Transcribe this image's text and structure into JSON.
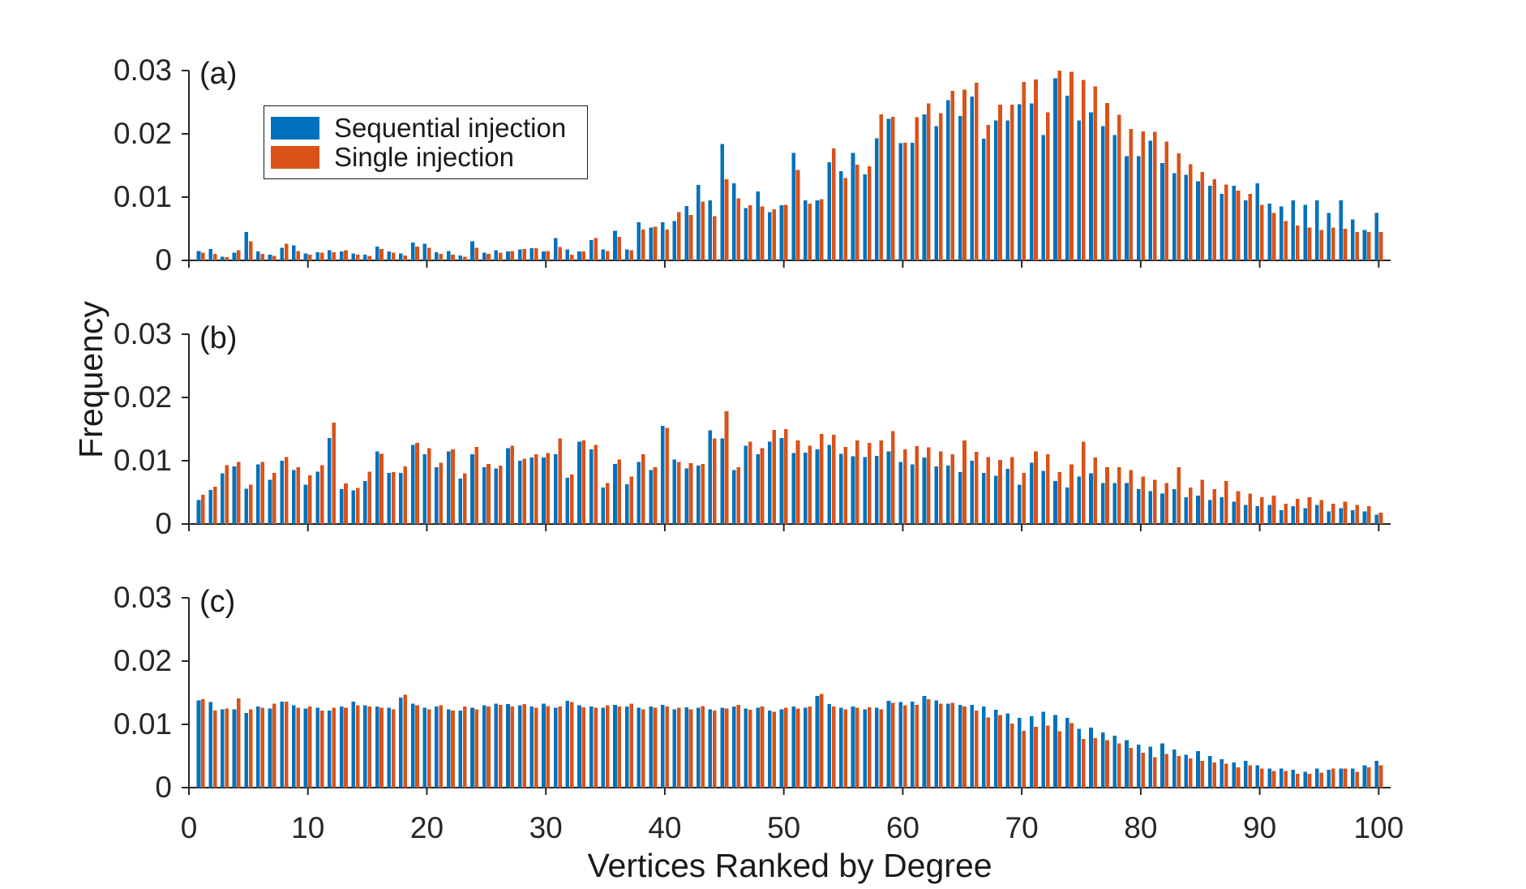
{
  "figure": {
    "background": "#FFFFFF",
    "xlabel": "Vertices Ranked by Degree",
    "ylabel": "Frequency",
    "xtick_labels": [
      "0",
      "10",
      "20",
      "30",
      "40",
      "50",
      "60",
      "70",
      "80",
      "90",
      "100"
    ],
    "ytick_labels": [
      "0",
      "0.01",
      "0.02",
      "0.03"
    ],
    "axis_color": "#262626"
  },
  "legend": {
    "items": [
      {
        "label": "Sequential injection",
        "color": "#0072BD"
      },
      {
        "label": "Single injection",
        "color": "#D95319"
      }
    ]
  },
  "chart_data": [
    {
      "type": "bar",
      "id": "a",
      "tag": "(a)",
      "x_start": 1,
      "xlim": [
        0,
        101
      ],
      "ylim": [
        0,
        0.03
      ],
      "ylabel": "Frequency",
      "series": [
        {
          "name": "Sequential injection",
          "color": "#0072BD",
          "values": [
            0.0015,
            0.0018,
            0.0006,
            0.0012,
            0.0045,
            0.0014,
            0.0009,
            0.002,
            0.0024,
            0.0011,
            0.0013,
            0.0016,
            0.0014,
            0.0011,
            0.0009,
            0.0022,
            0.0014,
            0.0011,
            0.0028,
            0.0026,
            0.0013,
            0.0015,
            0.0008,
            0.003,
            0.0012,
            0.0016,
            0.0014,
            0.0017,
            0.0019,
            0.0014,
            0.0035,
            0.0017,
            0.0014,
            0.0032,
            0.0017,
            0.0047,
            0.0017,
            0.006,
            0.0052,
            0.006,
            0.0062,
            0.0086,
            0.0119,
            0.0095,
            0.0184,
            0.0122,
            0.0083,
            0.0109,
            0.0076,
            0.0087,
            0.017,
            0.0095,
            0.0095,
            0.0155,
            0.0141,
            0.017,
            0.0136,
            0.0193,
            0.0224,
            0.0185,
            0.0186,
            0.0231,
            0.0212,
            0.0253,
            0.0228,
            0.0259,
            0.0192,
            0.0221,
            0.0221,
            0.0247,
            0.0248,
            0.0198,
            0.0288,
            0.026,
            0.0221,
            0.0234,
            0.0212,
            0.0198,
            0.0165,
            0.0165,
            0.0189,
            0.0154,
            0.0138,
            0.0135,
            0.0125,
            0.0118,
            0.0105,
            0.0118,
            0.0095,
            0.0122,
            0.009,
            0.0085,
            0.0095,
            0.0088,
            0.0095,
            0.0075,
            0.0095,
            0.0065,
            0.0048,
            0.0075
          ]
        },
        {
          "name": "Single injection",
          "color": "#D95319",
          "values": [
            0.0012,
            0.001,
            0.0005,
            0.0016,
            0.003,
            0.001,
            0.0007,
            0.0026,
            0.0015,
            0.0009,
            0.0012,
            0.0013,
            0.0016,
            0.0009,
            0.0007,
            0.0018,
            0.0012,
            0.0008,
            0.0022,
            0.002,
            0.001,
            0.0009,
            0.0006,
            0.002,
            0.001,
            0.0012,
            0.0015,
            0.0018,
            0.0019,
            0.0015,
            0.0021,
            0.0009,
            0.0014,
            0.0035,
            0.0015,
            0.0037,
            0.0016,
            0.0049,
            0.0053,
            0.0049,
            0.0076,
            0.0072,
            0.0093,
            0.007,
            0.0128,
            0.0098,
            0.0087,
            0.0085,
            0.0081,
            0.0088,
            0.0143,
            0.009,
            0.0097,
            0.0177,
            0.013,
            0.0151,
            0.0149,
            0.0231,
            0.0227,
            0.0186,
            0.0226,
            0.0248,
            0.0233,
            0.0268,
            0.027,
            0.0281,
            0.0214,
            0.0246,
            0.0246,
            0.0282,
            0.0286,
            0.0234,
            0.03,
            0.0298,
            0.0285,
            0.0275,
            0.0249,
            0.023,
            0.0208,
            0.0204,
            0.0203,
            0.0188,
            0.0169,
            0.0152,
            0.014,
            0.0128,
            0.012,
            0.011,
            0.0105,
            0.0088,
            0.0075,
            0.0062,
            0.0055,
            0.0052,
            0.0048,
            0.0052,
            0.005,
            0.0045,
            0.0045,
            0.0045
          ]
        }
      ]
    },
    {
      "type": "bar",
      "id": "b",
      "tag": "(b)",
      "x_start": 1,
      "xlim": [
        0,
        101
      ],
      "ylim": [
        0,
        0.03
      ],
      "ylabel": "Frequency",
      "series": [
        {
          "name": "Sequential injection",
          "color": "#0072BD",
          "values": [
            0.0038,
            0.0054,
            0.008,
            0.0091,
            0.0056,
            0.0094,
            0.007,
            0.01,
            0.0085,
            0.0062,
            0.0083,
            0.0136,
            0.0055,
            0.0053,
            0.0068,
            0.0115,
            0.0081,
            0.0081,
            0.0125,
            0.011,
            0.009,
            0.0115,
            0.0072,
            0.011,
            0.009,
            0.0088,
            0.012,
            0.01,
            0.0105,
            0.0105,
            0.011,
            0.0073,
            0.013,
            0.0118,
            0.0058,
            0.0095,
            0.0063,
            0.0098,
            0.0085,
            0.0155,
            0.0102,
            0.0088,
            0.0092,
            0.0148,
            0.0135,
            0.0085,
            0.0124,
            0.011,
            0.013,
            0.0136,
            0.0112,
            0.0113,
            0.0118,
            0.0125,
            0.0111,
            0.0107,
            0.0106,
            0.0108,
            0.0115,
            0.0098,
            0.0094,
            0.0105,
            0.0091,
            0.0092,
            0.0082,
            0.01,
            0.0081,
            0.0076,
            0.0087,
            0.0062,
            0.0097,
            0.0084,
            0.0068,
            0.0058,
            0.0075,
            0.008,
            0.0065,
            0.0065,
            0.0065,
            0.0055,
            0.0052,
            0.0048,
            0.0055,
            0.0042,
            0.0045,
            0.0038,
            0.0042,
            0.0035,
            0.003,
            0.0028,
            0.003,
            0.0022,
            0.0028,
            0.0025,
            0.003,
            0.002,
            0.0025,
            0.0022,
            0.002,
            0.0015
          ]
        },
        {
          "name": "Single injection",
          "color": "#D95319",
          "values": [
            0.0046,
            0.0059,
            0.0093,
            0.0098,
            0.0062,
            0.0098,
            0.0081,
            0.0106,
            0.009,
            0.0077,
            0.0093,
            0.016,
            0.0064,
            0.0057,
            0.0083,
            0.0111,
            0.0082,
            0.0091,
            0.0128,
            0.012,
            0.0097,
            0.0118,
            0.008,
            0.0122,
            0.0095,
            0.0092,
            0.0124,
            0.0103,
            0.011,
            0.0112,
            0.0135,
            0.0078,
            0.0132,
            0.0125,
            0.0065,
            0.0102,
            0.0075,
            0.011,
            0.009,
            0.0152,
            0.0098,
            0.0096,
            0.0095,
            0.0135,
            0.0178,
            0.009,
            0.013,
            0.012,
            0.0149,
            0.015,
            0.0132,
            0.0124,
            0.0142,
            0.0141,
            0.0122,
            0.0132,
            0.0128,
            0.0132,
            0.0147,
            0.0118,
            0.0123,
            0.0121,
            0.0115,
            0.011,
            0.0132,
            0.0114,
            0.0106,
            0.0101,
            0.0106,
            0.0081,
            0.0115,
            0.011,
            0.0082,
            0.0094,
            0.013,
            0.0105,
            0.009,
            0.009,
            0.0085,
            0.0075,
            0.007,
            0.0065,
            0.009,
            0.0058,
            0.007,
            0.0055,
            0.0068,
            0.0052,
            0.0048,
            0.0042,
            0.0045,
            0.0032,
            0.004,
            0.0042,
            0.0038,
            0.0032,
            0.0035,
            0.003,
            0.0028,
            0.0018
          ]
        }
      ]
    },
    {
      "type": "bar",
      "id": "c",
      "tag": "(c)",
      "x_start": 1,
      "xlim": [
        0,
        101
      ],
      "ylim": [
        0,
        0.03
      ],
      "ylabel": "Frequency",
      "xlabel": "Vertices Ranked by Degree",
      "series": [
        {
          "name": "Sequential injection",
          "color": "#0072BD",
          "values": [
            0.0138,
            0.0135,
            0.0124,
            0.0124,
            0.0118,
            0.0128,
            0.0125,
            0.0136,
            0.013,
            0.0125,
            0.0126,
            0.0122,
            0.0128,
            0.0136,
            0.013,
            0.0128,
            0.0126,
            0.0142,
            0.0133,
            0.0126,
            0.0128,
            0.0124,
            0.0122,
            0.0126,
            0.013,
            0.0133,
            0.0132,
            0.013,
            0.0128,
            0.0133,
            0.0126,
            0.0137,
            0.013,
            0.0128,
            0.0126,
            0.0131,
            0.0128,
            0.0126,
            0.0128,
            0.0131,
            0.0124,
            0.0127,
            0.0126,
            0.0124,
            0.0126,
            0.0128,
            0.0125,
            0.0126,
            0.0122,
            0.0124,
            0.0128,
            0.0126,
            0.0145,
            0.0132,
            0.0126,
            0.0128,
            0.0124,
            0.0126,
            0.0137,
            0.0135,
            0.0136,
            0.0145,
            0.0138,
            0.0133,
            0.0131,
            0.0131,
            0.0128,
            0.0123,
            0.0117,
            0.011,
            0.0113,
            0.012,
            0.0115,
            0.011,
            0.0093,
            0.0095,
            0.0087,
            0.0082,
            0.0075,
            0.0068,
            0.0065,
            0.007,
            0.006,
            0.0052,
            0.0058,
            0.005,
            0.0045,
            0.004,
            0.0042,
            0.0035,
            0.003,
            0.003,
            0.0028,
            0.0025,
            0.003,
            0.0028,
            0.003,
            0.003,
            0.0035,
            0.0042
          ]
        },
        {
          "name": "Single injection",
          "color": "#D95319",
          "values": [
            0.014,
            0.0122,
            0.0125,
            0.0141,
            0.0124,
            0.0126,
            0.0133,
            0.0136,
            0.0126,
            0.0128,
            0.0122,
            0.0126,
            0.0126,
            0.013,
            0.0128,
            0.0126,
            0.0124,
            0.0147,
            0.013,
            0.0124,
            0.013,
            0.0122,
            0.0128,
            0.0124,
            0.0128,
            0.0131,
            0.0128,
            0.0132,
            0.0126,
            0.0129,
            0.0128,
            0.0135,
            0.0127,
            0.0126,
            0.013,
            0.0128,
            0.0133,
            0.0124,
            0.0126,
            0.0128,
            0.0126,
            0.0124,
            0.0129,
            0.0122,
            0.0125,
            0.0131,
            0.0123,
            0.0128,
            0.012,
            0.0126,
            0.0125,
            0.0128,
            0.0148,
            0.0128,
            0.0124,
            0.0126,
            0.0127,
            0.0124,
            0.0134,
            0.013,
            0.0131,
            0.014,
            0.0133,
            0.0134,
            0.0128,
            0.0122,
            0.0111,
            0.0115,
            0.0101,
            0.009,
            0.0096,
            0.0098,
            0.0089,
            0.0102,
            0.0077,
            0.0078,
            0.0075,
            0.007,
            0.0063,
            0.0055,
            0.0048,
            0.0053,
            0.005,
            0.0046,
            0.0042,
            0.004,
            0.0038,
            0.0032,
            0.0035,
            0.003,
            0.0026,
            0.0026,
            0.0022,
            0.0022,
            0.0024,
            0.003,
            0.003,
            0.0025,
            0.0032,
            0.0035
          ]
        }
      ]
    }
  ]
}
